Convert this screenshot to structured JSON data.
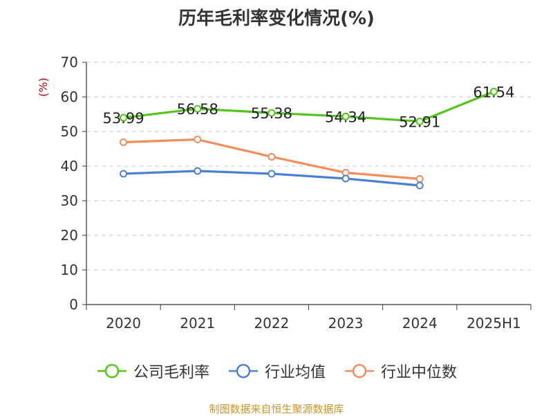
{
  "chart_data": {
    "type": "line",
    "title": "历年毛利率变化情况(%)",
    "ylabel": "(%)",
    "xlabel": "",
    "categories": [
      "2020",
      "2021",
      "2022",
      "2023",
      "2024",
      "2025H1"
    ],
    "ylim": [
      0,
      70
    ],
    "yticks": [
      0,
      10,
      20,
      30,
      40,
      50,
      60,
      70
    ],
    "grid": true,
    "legend_position": "bottom",
    "series": [
      {
        "name": "公司毛利率",
        "color": "#52c41a",
        "values": [
          53.99,
          56.58,
          55.38,
          54.34,
          52.91,
          61.54
        ],
        "labels": [
          "53.99",
          "56.58",
          "55.38",
          "54.34",
          "52.91",
          "61.54"
        ]
      },
      {
        "name": "行业均值",
        "color": "#4a7fd6",
        "values": [
          37.8,
          38.6,
          37.8,
          36.4,
          34.4,
          null
        ]
      },
      {
        "name": "行业中位数",
        "color": "#f28c5a",
        "values": [
          46.9,
          47.7,
          42.7,
          38.1,
          36.3,
          null
        ]
      }
    ]
  },
  "source": "制图数据来自恒生聚源数据库"
}
